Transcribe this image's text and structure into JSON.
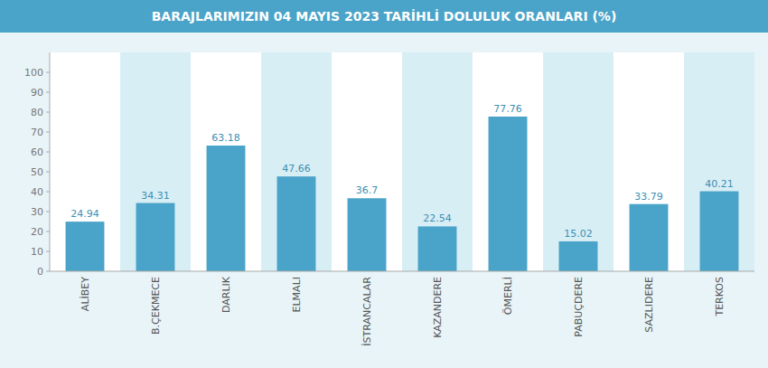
{
  "chart_data": {
    "type": "bar",
    "title": "BARAJLARIMIZIN 04 MAYIS 2023 TARİHLİ DOLULUK ORANLARI (%)",
    "categories": [
      "ALİBEY",
      "B.ÇEKMECE",
      "DARLIK",
      "ELMALI",
      "İSTRANCALAR",
      "KAZANDERE",
      "ÖMERLİ",
      "PABUÇDERE",
      "SAZLIDERE",
      "TERKOS"
    ],
    "values": [
      24.94,
      34.31,
      63.18,
      47.66,
      36.7,
      22.54,
      77.76,
      15.02,
      33.79,
      40.21
    ],
    "color": "#4aa3c8",
    "ylim": [
      0,
      110
    ],
    "yticks": [
      0,
      10,
      20,
      30,
      40,
      50,
      60,
      70,
      80,
      90,
      100
    ],
    "grid": false,
    "data_labels": true
  }
}
